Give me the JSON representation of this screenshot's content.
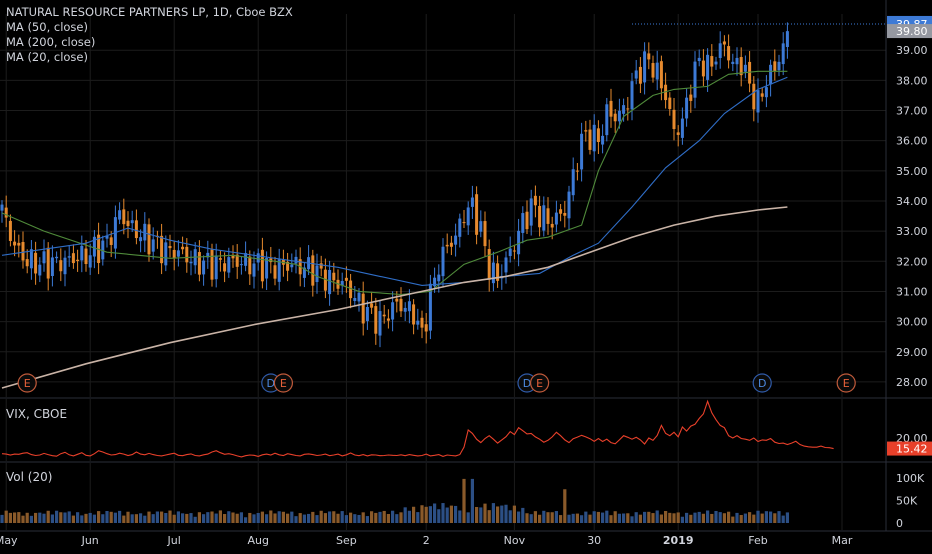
{
  "header": {
    "title": "NATURAL RESOURCE PARTNERS LP, 1D, Cboe BZX",
    "studies": [
      "MA (50, close)",
      "MA (200, close)",
      "MA (20, close)"
    ]
  },
  "colors": {
    "up": "#3d7ad6",
    "down": "#e68a2e",
    "ma20": "#4f8a3a",
    "ma50": "#2f6dc6",
    "ma200": "#c9b3a6",
    "vix": "#e8402a",
    "background": "#000000",
    "grid": "#1c1c1c",
    "axis_text": "#d1d4dc"
  },
  "chart_data": [
    {
      "type": "line",
      "pane": "price",
      "title": "NATURAL RESOURCE PARTNERS LP, 1D, Cboe BZX",
      "candles_note": "daily OHLC, estimated from the image",
      "x_tick_labels": [
        "May",
        "Jun",
        "Jul",
        "Aug",
        "Sep",
        "2",
        "Nov",
        "30",
        "2019",
        "Feb",
        "Mar"
      ],
      "y_tick_labels": [
        "39.00",
        "38.00",
        "37.00",
        "36.00",
        "35.00",
        "34.00",
        "33.00",
        "32.00",
        "31.00",
        "30.00",
        "29.00",
        "28.00"
      ],
      "ylim": [
        27.5,
        40.2
      ],
      "price_labels": {
        "last": "39.87",
        "prev": "39.80"
      },
      "series": [
        {
          "name": "MA (20, close)",
          "points": [
            [
              0,
              33.6
            ],
            [
              10,
              33.0
            ],
            [
              25,
              32.3
            ],
            [
              40,
              32.1
            ],
            [
              55,
              32.2
            ],
            [
              70,
              31.9
            ],
            [
              75,
              31.5
            ],
            [
              85,
              31.0
            ],
            [
              95,
              30.9
            ],
            [
              102,
              31.0
            ],
            [
              110,
              31.9
            ],
            [
              118,
              32.3
            ],
            [
              125,
              32.7
            ],
            [
              130,
              32.8
            ],
            [
              138,
              33.2
            ],
            [
              142,
              35.0
            ],
            [
              148,
              36.8
            ],
            [
              155,
              37.5
            ],
            [
              160,
              37.7
            ],
            [
              168,
              37.8
            ],
            [
              173,
              38.2
            ],
            [
              180,
              38.3
            ],
            [
              187,
              38.3
            ]
          ]
        },
        {
          "name": "MA (50, close)",
          "points": [
            [
              0,
              32.2
            ],
            [
              10,
              32.4
            ],
            [
              20,
              32.6
            ],
            [
              30,
              33.1
            ],
            [
              40,
              32.7
            ],
            [
              50,
              32.4
            ],
            [
              60,
              32.2
            ],
            [
              70,
              32.0
            ],
            [
              80,
              31.8
            ],
            [
              90,
              31.5
            ],
            [
              100,
              31.2
            ],
            [
              110,
              31.3
            ],
            [
              120,
              31.5
            ],
            [
              128,
              31.6
            ],
            [
              136,
              32.2
            ],
            [
              142,
              32.6
            ],
            [
              150,
              33.8
            ],
            [
              158,
              35.1
            ],
            [
              166,
              36.0
            ],
            [
              172,
              36.9
            ],
            [
              180,
              37.7
            ],
            [
              187,
              38.1
            ]
          ]
        },
        {
          "name": "MA (200, close)",
          "points": [
            [
              0,
              27.8
            ],
            [
              20,
              28.6
            ],
            [
              40,
              29.3
            ],
            [
              60,
              29.9
            ],
            [
              80,
              30.4
            ],
            [
              100,
              31.0
            ],
            [
              110,
              31.3
            ],
            [
              120,
              31.5
            ],
            [
              130,
              31.8
            ],
            [
              140,
              32.3
            ],
            [
              150,
              32.8
            ],
            [
              160,
              33.2
            ],
            [
              170,
              33.5
            ],
            [
              180,
              33.7
            ],
            [
              187,
              33.8
            ]
          ]
        }
      ]
    },
    {
      "type": "line",
      "pane": "vix",
      "title": "VIX, CBOE",
      "y_tick_labels": [
        "20.00"
      ],
      "last_value_label": "15.42",
      "ylim": [
        10,
        37
      ],
      "series": [
        {
          "name": "VIX, CBOE",
          "values": [
            13.2,
            13.0,
            12.6,
            13.0,
            12.9,
            13.4,
            13.6,
            12.8,
            12.4,
            12.6,
            13.3,
            12.8,
            12.3,
            12.1,
            13.2,
            13.8,
            12.7,
            12.2,
            12.9,
            13.6,
            12.5,
            12.2,
            13.2,
            14.5,
            13.9,
            13.2,
            12.6,
            12.8,
            13.4,
            13.0,
            12.4,
            12.8,
            13.9,
            13.0,
            12.7,
            13.3,
            12.8,
            12.4,
            12.2,
            12.6,
            13.0,
            13.4,
            12.5,
            12.3,
            12.8,
            13.1,
            12.4,
            12.2,
            12.7,
            13.0,
            13.9,
            14.5,
            13.6,
            12.9,
            13.2,
            12.8,
            12.2,
            11.8,
            12.3,
            12.6,
            12.5,
            12.0,
            12.7,
            13.0,
            12.6,
            13.4,
            12.7,
            12.4,
            13.2,
            12.8,
            12.4,
            12.2,
            12.9,
            13.1,
            12.8,
            12.4,
            12.6,
            13.0,
            12.3,
            12.6,
            13.0,
            12.2,
            12.7,
            13.5,
            12.6,
            12.3,
            12.8,
            12.2,
            12.7,
            12.6,
            12.3,
            12.4,
            12.6,
            12.5,
            12.4,
            12.7,
            12.3,
            12.8,
            12.5,
            12.2,
            12.4,
            13.0,
            12.2,
            12.5,
            12.8,
            12.0,
            12.6,
            12.4,
            12.2,
            12.8,
            16.0,
            23.5,
            22.0,
            19.5,
            18.0,
            19.8,
            21.0,
            19.5,
            17.8,
            19.2,
            20.6,
            22.8,
            21.5,
            24.5,
            23.2,
            21.8,
            22.0,
            20.5,
            19.5,
            18.2,
            19.0,
            20.5,
            22.5,
            21.0,
            19.2,
            18.0,
            19.7,
            20.4,
            21.2,
            20.5,
            19.7,
            18.6,
            19.8,
            18.5,
            19.5,
            18.0,
            17.5,
            19.2,
            21.0,
            20.3,
            19.5,
            20.3,
            19.2,
            17.4,
            20.0,
            19.0,
            21.1,
            25.5,
            22.0,
            21.0,
            22.5,
            20.5,
            24.8,
            23.0,
            25.2,
            26.0,
            28.5,
            30.5,
            36.0,
            31.0,
            28.0,
            25.5,
            24.5,
            21.0,
            20.0,
            21.0,
            19.8,
            19.5,
            19.0,
            20.0,
            18.5,
            19.2,
            19.0,
            19.8,
            18.2,
            17.6,
            17.8,
            17.2,
            17.8,
            18.6,
            17.2,
            16.5,
            16.2,
            16.0,
            16.0,
            16.5,
            15.9,
            15.8,
            15.4
          ]
        }
      ]
    },
    {
      "type": "bar",
      "pane": "volume",
      "title": "Vol (20)",
      "y_tick_labels": [
        "100K",
        "50K",
        "0"
      ],
      "ylim": [
        0,
        120000
      ]
    }
  ],
  "vol_pane": {
    "label": "Vol (20)"
  },
  "vix_pane": {
    "label": "VIX, CBOE"
  },
  "event_markers": [
    {
      "kind": "earnings",
      "letter": "E",
      "at_date": "2018-05-08"
    },
    {
      "kind": "dividend",
      "letter": "D",
      "at_date": "2018-08-07"
    },
    {
      "kind": "earnings",
      "letter": "E",
      "at_date": "2018-08-08"
    },
    {
      "kind": "dividend",
      "letter": "D",
      "at_date": "2018-11-06"
    },
    {
      "kind": "earnings",
      "letter": "E",
      "at_date": "2018-11-07"
    },
    {
      "kind": "dividend",
      "letter": "D",
      "at_date": "2019-02-04"
    },
    {
      "kind": "earnings",
      "letter": "E",
      "at_date": "2019-03-05"
    }
  ]
}
